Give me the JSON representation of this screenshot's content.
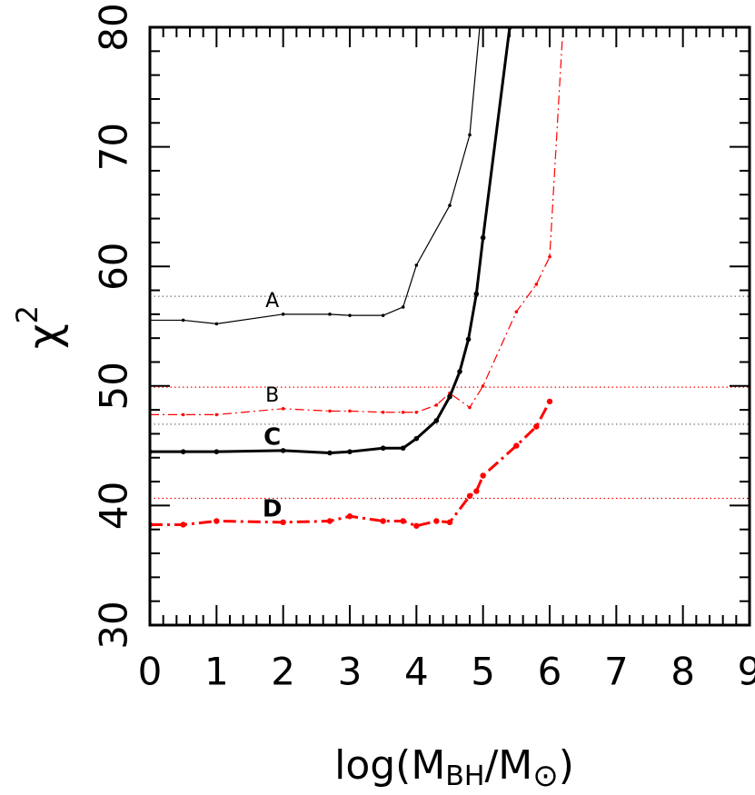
{
  "chart_data": {
    "type": "line",
    "x_label_parts": [
      "log(M",
      "BH",
      "/M",
      "⊙",
      ")"
    ],
    "y_label_parts": [
      "χ",
      "2"
    ],
    "xlim": [
      0,
      9
    ],
    "ylim": [
      30,
      80
    ],
    "xticks": [
      0,
      1,
      2,
      3,
      4,
      5,
      6,
      7,
      8,
      9
    ],
    "yticks": [
      30,
      40,
      50,
      60,
      70,
      80
    ],
    "xminorticks": [
      0.2,
      0.4,
      0.6,
      0.8,
      1.2,
      1.4,
      1.6,
      1.8,
      2.2,
      2.4,
      2.6,
      2.8,
      3.2,
      3.4,
      3.6,
      3.8,
      4.2,
      4.4,
      4.6,
      4.8,
      5.2,
      5.4,
      5.6,
      5.8,
      6.2,
      6.4,
      6.6,
      6.8,
      7.2,
      7.4,
      7.6,
      7.8,
      8.2,
      8.4,
      8.6,
      8.8
    ],
    "yminorticks": [
      32,
      34,
      36,
      38,
      42,
      44,
      46,
      48,
      52,
      54,
      56,
      58,
      62,
      64,
      66,
      68,
      72,
      74,
      76,
      78
    ],
    "reference_lines": [
      {
        "value": 57.5,
        "color": "#777777"
      },
      {
        "value": 49.9,
        "color": "#ff0000"
      },
      {
        "value": 46.8,
        "color": "#777777"
      },
      {
        "value": 40.6,
        "color": "#ff0000"
      }
    ],
    "series": [
      {
        "name": "A",
        "color": "#000000",
        "linewidth": 1.2,
        "linestyle": "solid",
        "marker_size": 1.8,
        "x": [
          0,
          0.5,
          1.0,
          2.0,
          2.7,
          3.0,
          3.5,
          3.8,
          4.0,
          4.5,
          4.8,
          4.95
        ],
        "values": [
          55.5,
          55.5,
          55.2,
          56.0,
          56.0,
          55.9,
          55.9,
          56.6,
          60.1,
          65.1,
          71.0,
          80
        ]
      },
      {
        "name": "B",
        "color": "#ff0000",
        "linewidth": 1.2,
        "linestyle": "dashdot",
        "marker_size": 1.8,
        "x": [
          0,
          0.5,
          1.0,
          2.0,
          2.7,
          3.0,
          3.5,
          3.8,
          4.0,
          4.3,
          4.5,
          4.8,
          5.0,
          5.5,
          5.8,
          6.0,
          6.2
        ],
        "values": [
          47.6,
          47.6,
          47.6,
          48.1,
          47.9,
          47.9,
          47.8,
          47.8,
          47.8,
          48.4,
          49.4,
          48.2,
          50.0,
          56.2,
          58.5,
          60.8,
          80
        ]
      },
      {
        "name": "C",
        "color": "#000000",
        "linewidth": 3,
        "linestyle": "solid",
        "marker_size": 2.8,
        "x": [
          0,
          0.5,
          1.0,
          2.0,
          2.7,
          3.0,
          3.5,
          3.8,
          4.0,
          4.3,
          4.5,
          4.65,
          4.78,
          4.9,
          5.0,
          5.4
        ],
        "values": [
          44.5,
          44.5,
          44.5,
          44.6,
          44.4,
          44.5,
          44.8,
          44.8,
          45.6,
          47.1,
          49.1,
          51.2,
          53.9,
          57.7,
          62.4,
          80
        ]
      },
      {
        "name": "D",
        "color": "#ff0000",
        "linewidth": 3,
        "linestyle": "dashdot",
        "marker_size": 3.2,
        "x": [
          0,
          0.5,
          1.0,
          2.0,
          2.7,
          3.0,
          3.5,
          3.8,
          4.0,
          4.3,
          4.5,
          4.8,
          4.9,
          5.0,
          5.5,
          5.8,
          6.0
        ],
        "values": [
          38.4,
          38.4,
          38.7,
          38.6,
          38.7,
          39.1,
          38.7,
          38.7,
          38.3,
          38.7,
          38.6,
          40.8,
          41.2,
          42.5,
          45.0,
          46.6,
          48.7
        ]
      }
    ]
  }
}
